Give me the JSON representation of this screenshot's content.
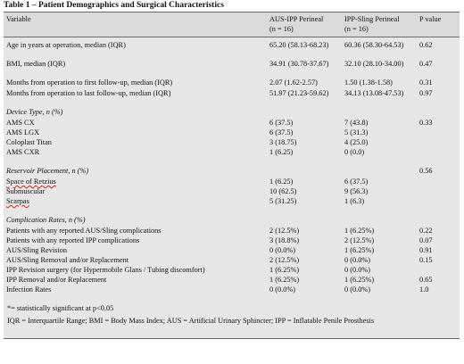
{
  "title": "Table 1 – Patient Demographics and Surgical Characteristics",
  "header": {
    "variable": "Variable",
    "col1_line1": "AUS-IPP Perineal",
    "col1_line2": "(n = 16)",
    "col2_line1": "IPP-Sling Perineal",
    "col2_line2": "(n = 16)",
    "pvalue": "P value"
  },
  "rows": [
    {
      "label": "Age in years at operation, median (IQR)",
      "a": "65.20 (58.13-68.23)",
      "b": "60.36 (58.30-64.53)",
      "p": "0.62"
    },
    {
      "label": "BMI, median (IQR)",
      "a": "34.91 (30.78-37.67)",
      "b": "32.10 (28.10-34.00)",
      "p": "0.47"
    },
    {
      "label": "Months from operation to first follow-up, median (IQR)",
      "a": "2.07 (1.62-2.57)",
      "b": "1.50 (1.38-1.58)",
      "p": "0.31"
    },
    {
      "label": "Months from operation to last follow-up, median (IQR)",
      "a": "51.97 (21.23-59.62)",
      "b": "34.13 (13.08-47.53)",
      "p": "0.97"
    },
    {
      "label": "Device Type, n (%)",
      "a": "",
      "b": "",
      "p": ""
    },
    {
      "label": "AMS CX",
      "a": "6 (37.5)",
      "b": "7 (43.8)",
      "p": "0.33"
    },
    {
      "label": "AMS LGX",
      "a": "6 (37.5)",
      "b": "5 (31.3)",
      "p": ""
    },
    {
      "label": "Coloplast Titan",
      "a": "3 (18.75)",
      "b": "4 (25.0)",
      "p": ""
    },
    {
      "label": "AMS CXR",
      "a": "1 (6.25)",
      "b": "0 (0.0)",
      "p": ""
    },
    {
      "label": "Reservoir Placement, n (%)",
      "a": "",
      "b": "",
      "p": "0.56"
    },
    {
      "label": "Space of Retzius",
      "a": "1 (6.25)",
      "b": "6 (37.5)",
      "p": ""
    },
    {
      "label": "Submuscular",
      "a": "10 (62.5)",
      "b": "9 (56.3)",
      "p": ""
    },
    {
      "label": "Scarpas",
      "a": "5 (31.25)",
      "b": "1 (6.3)",
      "p": ""
    },
    {
      "label": "Complication Rates, n (%)",
      "a": "",
      "b": "",
      "p": ""
    },
    {
      "label": "Patients with any reported AUS/Sling complications",
      "a": "2 (12.5%)",
      "b": "1 (6.25%)",
      "p": "0.22"
    },
    {
      "label": "Patients with any reported IPP complications",
      "a": "3 (18.8%)",
      "b": "2 (12.5%)",
      "p": "0.07"
    },
    {
      "label": "AUS/Sling Revision",
      "a": "0 (0.0%)",
      "b": "1 (6.25%)",
      "p": "0.91"
    },
    {
      "label": "AUS/Sling Removal and/or Replacement",
      "a": "2 (12.5%)",
      "b": "0 (0.0%)",
      "p": "0.15"
    },
    {
      "label": "IPP Revision surgery (for Hypermobile Glans / Tubing discomfort)",
      "a": "1 (6.25%)",
      "b": "0 (0.0%)",
      "p": ""
    },
    {
      "label": "IPP Removal and/or Replacement",
      "a": "1 (6.25%)",
      "b": "1 (6.25%)",
      "p": "0.65"
    },
    {
      "label": "Infection Rates",
      "a": "0 (0.0%)",
      "b": "0 (0.0%)",
      "p": "1.0"
    }
  ],
  "footnotes": [
    "*= statistically significant at p<0.05",
    "IQR = Interquartile Range; BMI = Body Mass Index; AUS = Artificial Urinary Sphincter; IPP = Inflatable Penile Prosthesis"
  ]
}
